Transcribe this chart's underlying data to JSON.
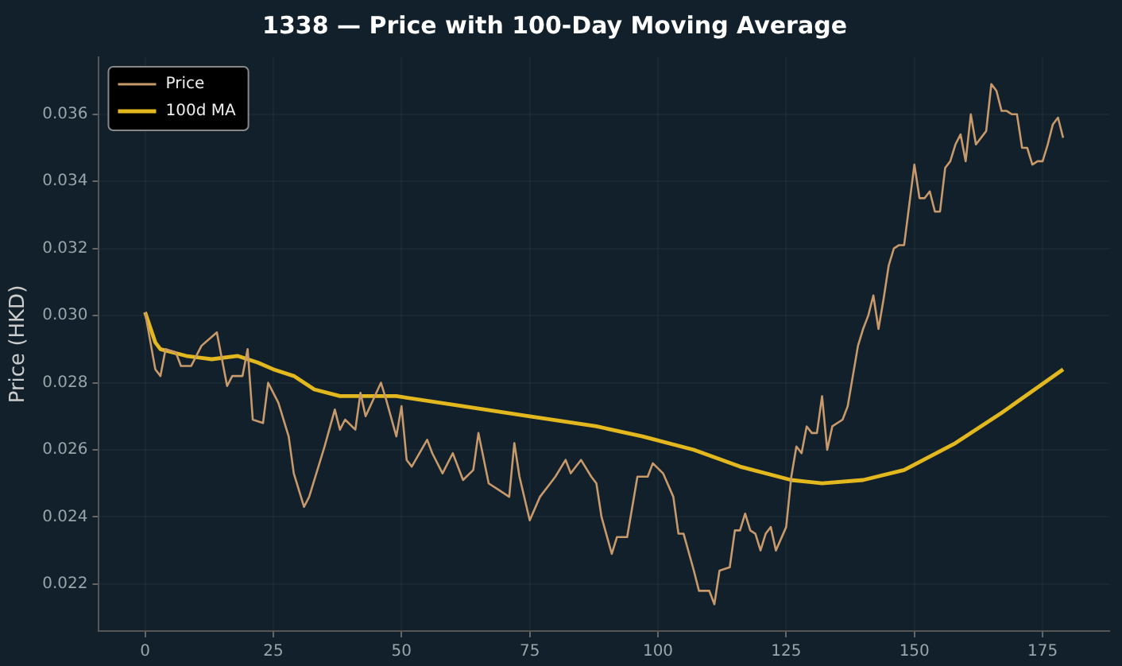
{
  "chart_data": {
    "type": "line",
    "title": "1338 — Price with 100-Day Moving Average",
    "ylabel": "Price (HKD)",
    "xlim": [
      -9,
      188
    ],
    "xticks": [
      0,
      25,
      50,
      75,
      100,
      125,
      150,
      175
    ],
    "ylim": [
      0.0206,
      0.0377
    ],
    "yticks": [
      0.022,
      0.024,
      0.026,
      0.028,
      {
        "value": 0.03,
        "label": "0.030"
      },
      0.032,
      0.034,
      0.036
    ],
    "grid": true,
    "legend": "top left",
    "marker": "none",
    "line_style": "solid",
    "series": [
      {
        "name": "Price",
        "color": "#c8996a",
        "x": [
          0,
          2,
          3,
          4,
          6,
          7,
          9,
          11,
          14,
          16,
          17,
          19,
          20,
          21,
          23,
          24,
          26,
          28,
          29,
          31,
          32,
          35,
          37,
          38,
          39,
          41,
          42,
          43,
          46,
          47,
          49,
          50,
          51,
          52,
          55,
          56,
          58,
          60,
          62,
          64,
          65,
          67,
          69,
          71,
          72,
          73,
          75,
          77,
          79,
          80,
          82,
          83,
          85,
          87,
          88,
          89,
          91,
          92,
          94,
          96,
          98,
          99,
          101,
          103,
          104,
          105,
          107,
          108,
          110,
          111,
          112,
          114,
          115,
          116,
          117,
          118,
          119,
          120,
          121,
          122,
          123,
          125,
          126,
          127,
          128,
          129,
          130,
          131,
          132,
          133,
          134,
          136,
          137,
          139,
          140,
          141,
          142,
          143,
          144,
          145,
          146,
          147,
          148,
          149,
          150,
          151,
          152,
          153,
          154,
          155,
          156,
          157,
          158,
          159,
          160,
          161,
          162,
          164,
          165,
          166,
          167,
          168,
          169,
          170,
          171,
          172,
          173,
          174,
          175,
          176,
          177,
          178,
          179
        ],
        "values": [
          0.0301,
          0.0284,
          0.0282,
          0.029,
          0.0289,
          0.0285,
          0.0285,
          0.0291,
          0.0295,
          0.0279,
          0.0282,
          0.0282,
          0.029,
          0.0269,
          0.0268,
          0.028,
          0.0274,
          0.0264,
          0.0253,
          0.0243,
          0.0246,
          0.0261,
          0.0272,
          0.0266,
          0.0269,
          0.0266,
          0.0277,
          0.027,
          0.028,
          0.0275,
          0.0264,
          0.0273,
          0.0257,
          0.0255,
          0.0263,
          0.0259,
          0.0253,
          0.0259,
          0.0251,
          0.0254,
          0.0265,
          0.025,
          0.0248,
          0.0246,
          0.0262,
          0.0252,
          0.0239,
          0.0246,
          0.025,
          0.0252,
          0.0257,
          0.0253,
          0.0257,
          0.0252,
          0.025,
          0.024,
          0.0229,
          0.0234,
          0.0234,
          0.0252,
          0.0252,
          0.0256,
          0.0253,
          0.0246,
          0.0235,
          0.0235,
          0.0224,
          0.0218,
          0.0218,
          0.0214,
          0.0224,
          0.0225,
          0.0236,
          0.0236,
          0.0241,
          0.0236,
          0.0235,
          0.023,
          0.0235,
          0.0237,
          0.023,
          0.0237,
          0.0252,
          0.0261,
          0.0259,
          0.0267,
          0.0265,
          0.0265,
          0.0276,
          0.026,
          0.0267,
          0.0269,
          0.0273,
          0.0291,
          0.0296,
          0.03,
          0.0306,
          0.0296,
          0.0305,
          0.0315,
          0.032,
          0.0321,
          0.0321,
          0.0333,
          0.0345,
          0.0335,
          0.0335,
          0.0337,
          0.0331,
          0.0331,
          0.0344,
          0.0346,
          0.0351,
          0.0354,
          0.0346,
          0.036,
          0.0351,
          0.0355,
          0.0369,
          0.0367,
          0.0361,
          0.0361,
          0.036,
          0.036,
          0.035,
          0.035,
          0.0345,
          0.0346,
          0.0346,
          0.0351,
          0.0357,
          0.0359,
          0.0353
        ]
      },
      {
        "name": "100d MA",
        "color": "#e2b81e",
        "x": [
          0,
          2,
          3,
          8,
          13,
          18,
          22,
          25,
          29,
          33,
          38,
          49,
          62,
          75,
          88,
          97,
          107,
          116,
          126,
          132,
          140,
          148,
          158,
          167,
          179
        ],
        "values": [
          0.0301,
          0.0292,
          0.029,
          0.0288,
          0.0287,
          0.0288,
          0.0286,
          0.0284,
          0.0282,
          0.0278,
          0.0276,
          0.0276,
          0.0273,
          0.027,
          0.0267,
          0.0264,
          0.026,
          0.0255,
          0.0251,
          0.025,
          0.0251,
          0.0254,
          0.0262,
          0.0271,
          0.0284
        ]
      }
    ]
  }
}
